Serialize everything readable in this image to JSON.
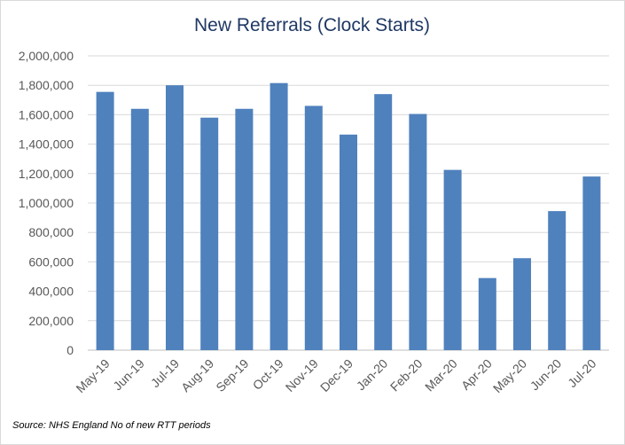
{
  "chart_data": {
    "type": "bar",
    "title": "New Referrals (Clock Starts)",
    "categories": [
      "May-19",
      "Jun-19",
      "Jul-19",
      "Aug-19",
      "Sep-19",
      "Oct-19",
      "Nov-19",
      "Dec-19",
      "Jan-20",
      "Feb-20",
      "Mar-20",
      "Apr-20",
      "May-20",
      "Jun-20",
      "Jul-20"
    ],
    "values": [
      1755000,
      1640000,
      1800000,
      1580000,
      1640000,
      1815000,
      1660000,
      1465000,
      1740000,
      1605000,
      1225000,
      490000,
      625000,
      945000,
      1180000
    ],
    "ylim": [
      0,
      2000000
    ],
    "yticks": [
      "0",
      "200,000",
      "400,000",
      "600,000",
      "800,000",
      "1,000,000",
      "1,200,000",
      "1,400,000",
      "1,600,000",
      "1,800,000",
      "2,000,000"
    ],
    "grid": true,
    "bar_color": "#4f81bd",
    "title_color": "#1f3864"
  },
  "source": "Source: NHS England No of new RTT periods"
}
